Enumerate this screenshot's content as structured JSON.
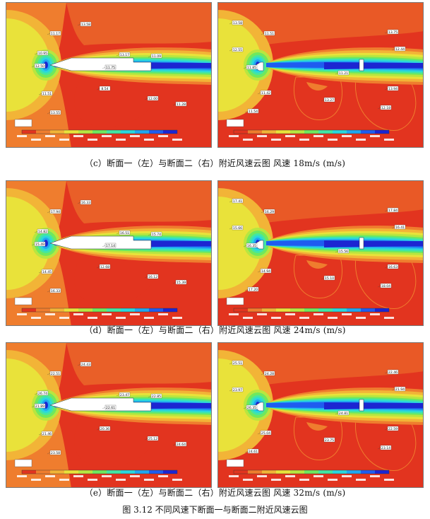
{
  "rows": [
    {
      "caption": "（c）断面一（左）与断面二（右）附近风速云图  风速 18m/s (m/s)",
      "left_labels": [
        "13.58",
        "11.17",
        "10.95",
        "12.50",
        "13.17",
        "11.09",
        "8.54",
        "12.00",
        "11.28",
        "11.51",
        "13.55",
        "11.75"
      ],
      "right_labels": [
        "13.58",
        "11.51",
        "12.55",
        "11.85",
        "13.75",
        "11.21",
        "12.44",
        "13.27",
        "11.42",
        "13.94",
        "11.54",
        "12.18"
      ]
    },
    {
      "caption": "（d）断面一（左）与断面二（右）附近风速云图  风速 24m/s (m/s)",
      "left_labels": [
        "16.33",
        "17.94",
        "14.82",
        "15.49",
        "16.51",
        "15.74",
        "12.68",
        "16.12",
        "15.39",
        "14.45",
        "16.33",
        "17.14"
      ],
      "right_labels": [
        "17.41",
        "16.29",
        "15.66",
        "16.35",
        "17.84",
        "15.56",
        "16.41",
        "15.10",
        "14.94",
        "16.63",
        "17.20",
        "18.04"
      ]
    },
    {
      "caption": "（e）断面一（左）与断面二（右）附近风速云图  风速 32m/s (m/s)",
      "left_labels": [
        "24.43",
        "22.51",
        "26.74",
        "21.89",
        "23.47",
        "22.85",
        "20.36",
        "25.12",
        "24.64",
        "21.46",
        "23.58",
        "22.61"
      ],
      "right_labels": [
        "25.51",
        "24.28",
        "23.97",
        "26.35",
        "22.46",
        "24.81",
        "21.94",
        "23.75",
        "25.04",
        "22.59",
        "24.61",
        "23.14"
      ]
    }
  ],
  "figure_title": "图 3.12  不同风速下断面一与断面二附近风速云图",
  "colormap": [
    "#1c25d2",
    "#1f5cf0",
    "#21a7f0",
    "#2ad7dd",
    "#43e6a3",
    "#6fe85e",
    "#b8e640",
    "#e9e23a",
    "#f2b437",
    "#ef7d2e",
    "#e2341f"
  ]
}
